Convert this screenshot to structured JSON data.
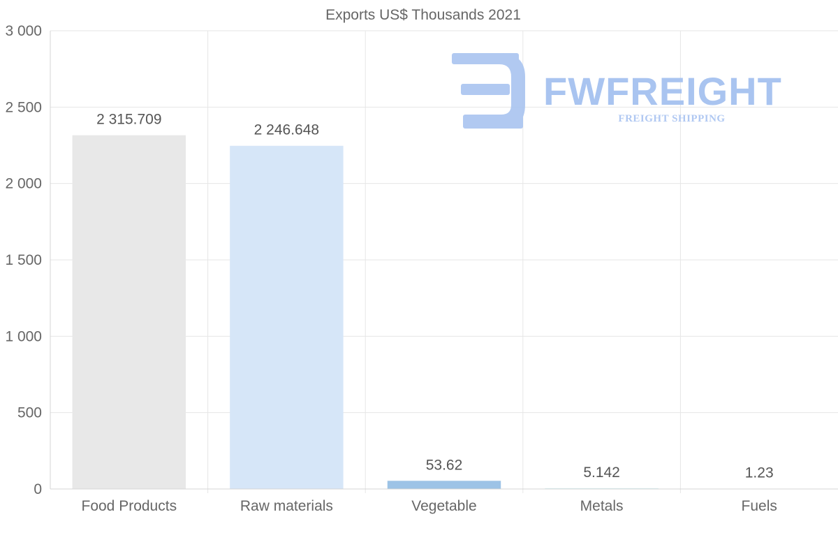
{
  "chart_data": {
    "type": "bar",
    "title": "Exports US$ Thousands 2021",
    "categories": [
      "Food Products",
      "Raw materials",
      "Vegetable",
      "Metals",
      "Fuels"
    ],
    "values": [
      2315.709,
      2246.648,
      53.62,
      5.142,
      1.23
    ],
    "data_labels": [
      "2 315.709",
      "2 246.648",
      "53.62",
      "5.142",
      "1.23"
    ],
    "bar_colors": [
      "#e8e8e8",
      "#d6e6f8",
      "#9dc3e6",
      "#d5eef2",
      "#e0e0e0"
    ],
    "yticks": [
      0,
      500,
      1000,
      1500,
      2000,
      2500,
      3000
    ],
    "ytick_labels": [
      "0",
      "500",
      "1 000",
      "1 500",
      "2 000",
      "2 500",
      "3 000"
    ],
    "ylim": [
      0,
      3000
    ],
    "xlabel": "",
    "ylabel": "",
    "grid": true,
    "legend": "none"
  },
  "watermark": {
    "name": "FWFREIGHT",
    "tagline": "FREIGHT SHIPPING",
    "color": "#a9c4f0"
  }
}
